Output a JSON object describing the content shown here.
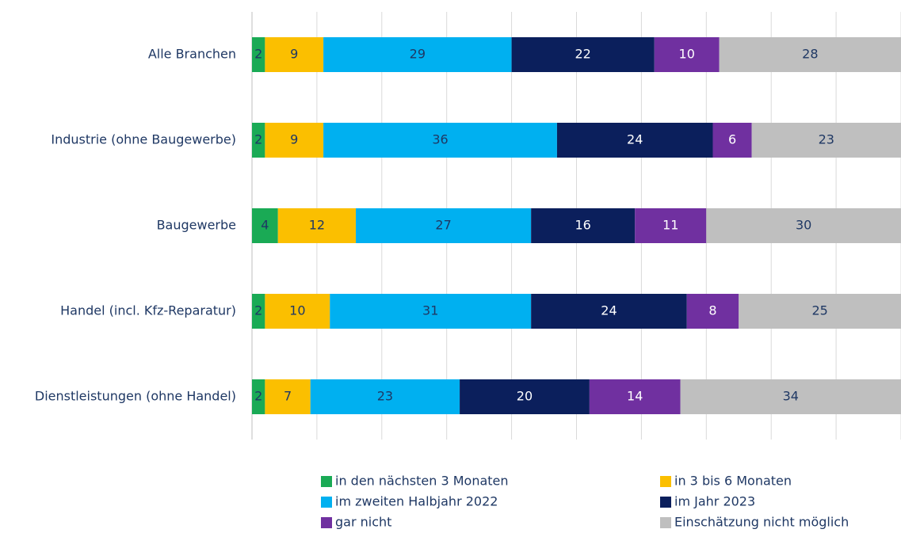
{
  "chart_data": {
    "type": "stacked_barh",
    "categories": [
      "Alle Branchen",
      "Industrie (ohne Baugewerbe)",
      "Baugewerbe",
      "Handel (incl. Kfz-Reparatur)",
      "Dienstleistungen (ohne Handel)"
    ],
    "series": [
      {
        "name": "in den nächsten 3 Monaten",
        "color": "#1aaa55",
        "values": [
          2,
          2,
          4,
          2,
          2
        ]
      },
      {
        "name": "in 3 bis 6 Monaten",
        "color": "#fbbf00",
        "values": [
          9,
          9,
          12,
          10,
          7
        ]
      },
      {
        "name": "im zweiten Halbjahr 2022",
        "color": "#00b0f0",
        "values": [
          29,
          36,
          27,
          31,
          23
        ]
      },
      {
        "name": "im Jahr 2023",
        "color": "#0b1f5c",
        "values": [
          22,
          24,
          16,
          24,
          20
        ]
      },
      {
        "name": "gar nicht",
        "color": "#7030a0",
        "values": [
          10,
          6,
          11,
          8,
          14
        ]
      },
      {
        "name": "Einschätzung nicht möglich",
        "color": "#bfbfbf",
        "values": [
          28,
          23,
          30,
          25,
          34
        ]
      }
    ],
    "xlim": [
      0,
      100
    ],
    "xticks": [
      0,
      10,
      20,
      30,
      40,
      50,
      60,
      70,
      80,
      90,
      100
    ],
    "grid": true
  }
}
